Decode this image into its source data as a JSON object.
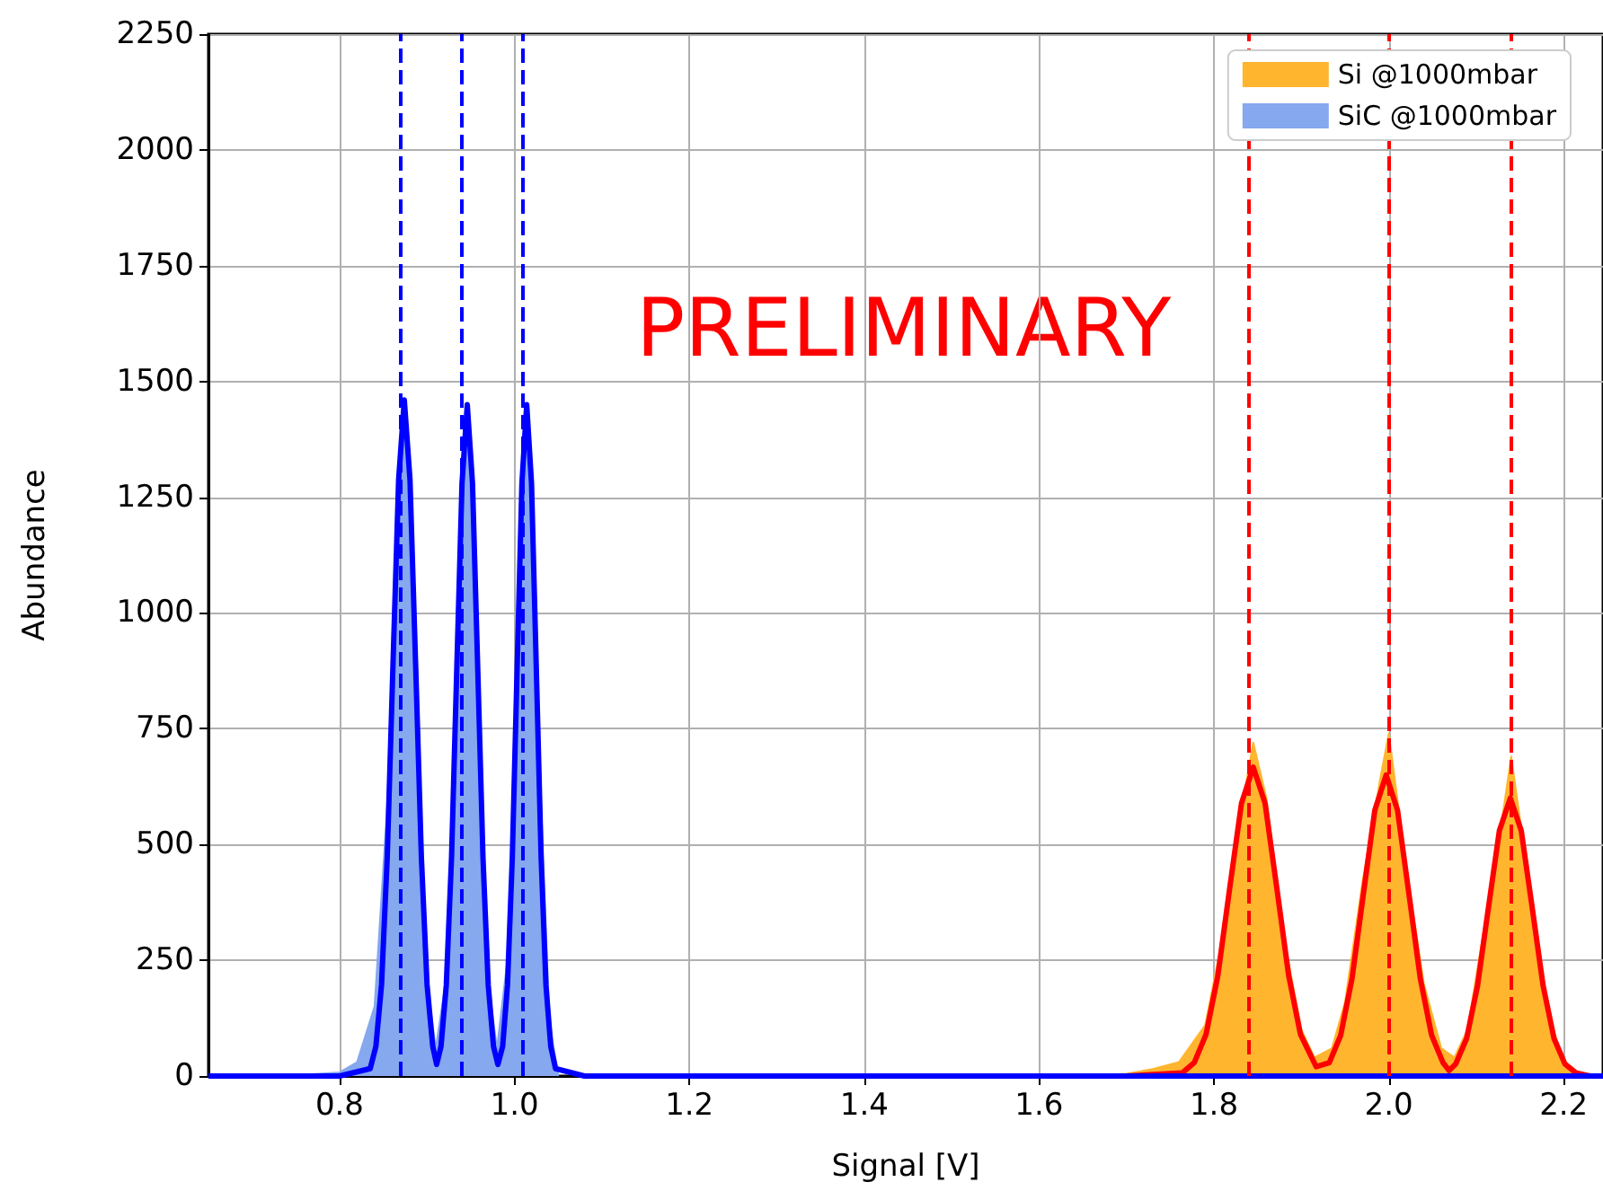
{
  "chart_data": {
    "type": "area",
    "xlabel": "Signal [V]",
    "ylabel": "Abundance",
    "xlim": [
      0.65,
      2.245
    ],
    "xticks": [
      {
        "value": 0.8,
        "label": "0.8"
      },
      {
        "value": 1,
        "label": "1.0"
      },
      {
        "value": 1.2,
        "label": "1.2"
      },
      {
        "value": 1.4,
        "label": "1.4"
      },
      {
        "value": 1.6,
        "label": "1.6"
      },
      {
        "value": 1.8,
        "label": "1.8"
      },
      {
        "value": 2,
        "label": "2.0"
      },
      {
        "value": 2.2,
        "label": "2.2"
      }
    ],
    "ylim": [
      0,
      2250
    ],
    "yticks": [
      0,
      250,
      500,
      750,
      1000,
      1250,
      1500,
      1750,
      2000,
      2250
    ],
    "grid": true,
    "legend": "top right",
    "annotations": [
      "PRELIMINARY"
    ],
    "series": [
      {
        "name": "Si @1000mbar",
        "color": "#ffb52e",
        "x": [
          1.65,
          1.7,
          1.73,
          1.76,
          1.79,
          1.81,
          1.83,
          1.845,
          1.86,
          1.88,
          1.9,
          1.915,
          1.935,
          1.95,
          1.97,
          1.99,
          2.0,
          2.02,
          2.04,
          2.06,
          2.075,
          2.09,
          2.11,
          2.13,
          2.14,
          2.16,
          2.18,
          2.2,
          2.22
        ],
        "values": [
          0,
          5,
          15,
          30,
          110,
          300,
          560,
          720,
          600,
          300,
          100,
          40,
          60,
          160,
          420,
          640,
          740,
          450,
          200,
          60,
          40,
          100,
          330,
          560,
          690,
          420,
          150,
          30,
          0
        ]
      },
      {
        "name": "SiC @1000mbar",
        "color": "#85a8ee",
        "x": [
          0.7,
          0.76,
          0.8,
          0.82,
          0.84,
          0.855,
          0.868,
          0.874,
          0.885,
          0.9,
          0.91,
          0.925,
          0.938,
          0.946,
          0.958,
          0.97,
          0.98,
          0.995,
          1.005,
          1.014,
          1.025,
          1.04,
          1.05
        ],
        "values": [
          0,
          3,
          8,
          30,
          150,
          600,
          1300,
          1460,
          900,
          200,
          60,
          250,
          1000,
          1450,
          850,
          200,
          60,
          300,
          1000,
          1450,
          850,
          120,
          0
        ]
      },
      {
        "type": "line",
        "color": "#ff0000",
        "x": [
          1.7,
          1.764,
          1.7775,
          1.791,
          1.8045,
          1.818,
          1.8315,
          1.845,
          1.8585,
          1.872,
          1.8855,
          1.899,
          1.917,
          1.932,
          1.945,
          1.958,
          1.971,
          1.984,
          1.997,
          2.01,
          2.023,
          2.036,
          2.049,
          2.062,
          2.069,
          2.0765,
          2.089,
          2.1015,
          2.114,
          2.1265,
          2.139,
          2.1515,
          2.164,
          2.1765,
          2.189,
          2.2015,
          2.214,
          2.23
        ],
        "values": [
          0,
          7,
          29,
          90,
          217,
          405,
          589,
          667,
          589,
          405,
          217,
          90,
          20,
          29,
          88,
          211,
          394,
          574,
          650,
          574,
          394,
          211,
          88,
          29,
          12,
          26,
          81,
          195,
          364,
          530,
          600,
          530,
          364,
          195,
          81,
          26,
          7,
          0
        ]
      },
      {
        "type": "line",
        "color": "#0000ff",
        "x": [
          0.65,
          0.8,
          0.835,
          0.8415,
          0.848,
          0.8545,
          0.861,
          0.8675,
          0.874,
          0.8805,
          0.887,
          0.8935,
          0.9,
          0.9065,
          0.911,
          0.916,
          0.922,
          0.928,
          0.934,
          0.94,
          0.946,
          0.952,
          0.958,
          0.964,
          0.97,
          0.976,
          0.981,
          0.9865,
          0.992,
          0.9975,
          1.003,
          1.0085,
          1.014,
          1.0195,
          1.025,
          1.0305,
          1.036,
          1.0415,
          1.047,
          1.08,
          2.245
        ],
        "values": [
          0,
          0,
          16,
          64,
          198,
          474,
          886,
          1288,
          1460,
          1288,
          886,
          474,
          198,
          64,
          25,
          64,
          196,
          471,
          879,
          1280,
          1450,
          1280,
          879,
          471,
          196,
          64,
          25,
          64,
          196,
          471,
          879,
          1280,
          1450,
          1280,
          879,
          471,
          196,
          64,
          16,
          0,
          0
        ]
      }
    ],
    "ref_lines": [
      {
        "axis": "x",
        "value": 0.872,
        "color": "#0000ff",
        "line_style": "dashed"
      },
      {
        "axis": "x",
        "value": 0.945,
        "color": "#0000ff",
        "line_style": "dashed"
      },
      {
        "axis": "x",
        "value": 1.012,
        "color": "#0000ff",
        "line_style": "dashed"
      },
      {
        "axis": "x",
        "value": 1.845,
        "color": "#ff0000",
        "line_style": "dashed"
      },
      {
        "axis": "x",
        "value": 1.995,
        "color": "#ff0000",
        "line_style": "dashed"
      },
      {
        "axis": "x",
        "value": 2.137,
        "color": "#ff0000",
        "line_style": "dashed"
      }
    ]
  }
}
